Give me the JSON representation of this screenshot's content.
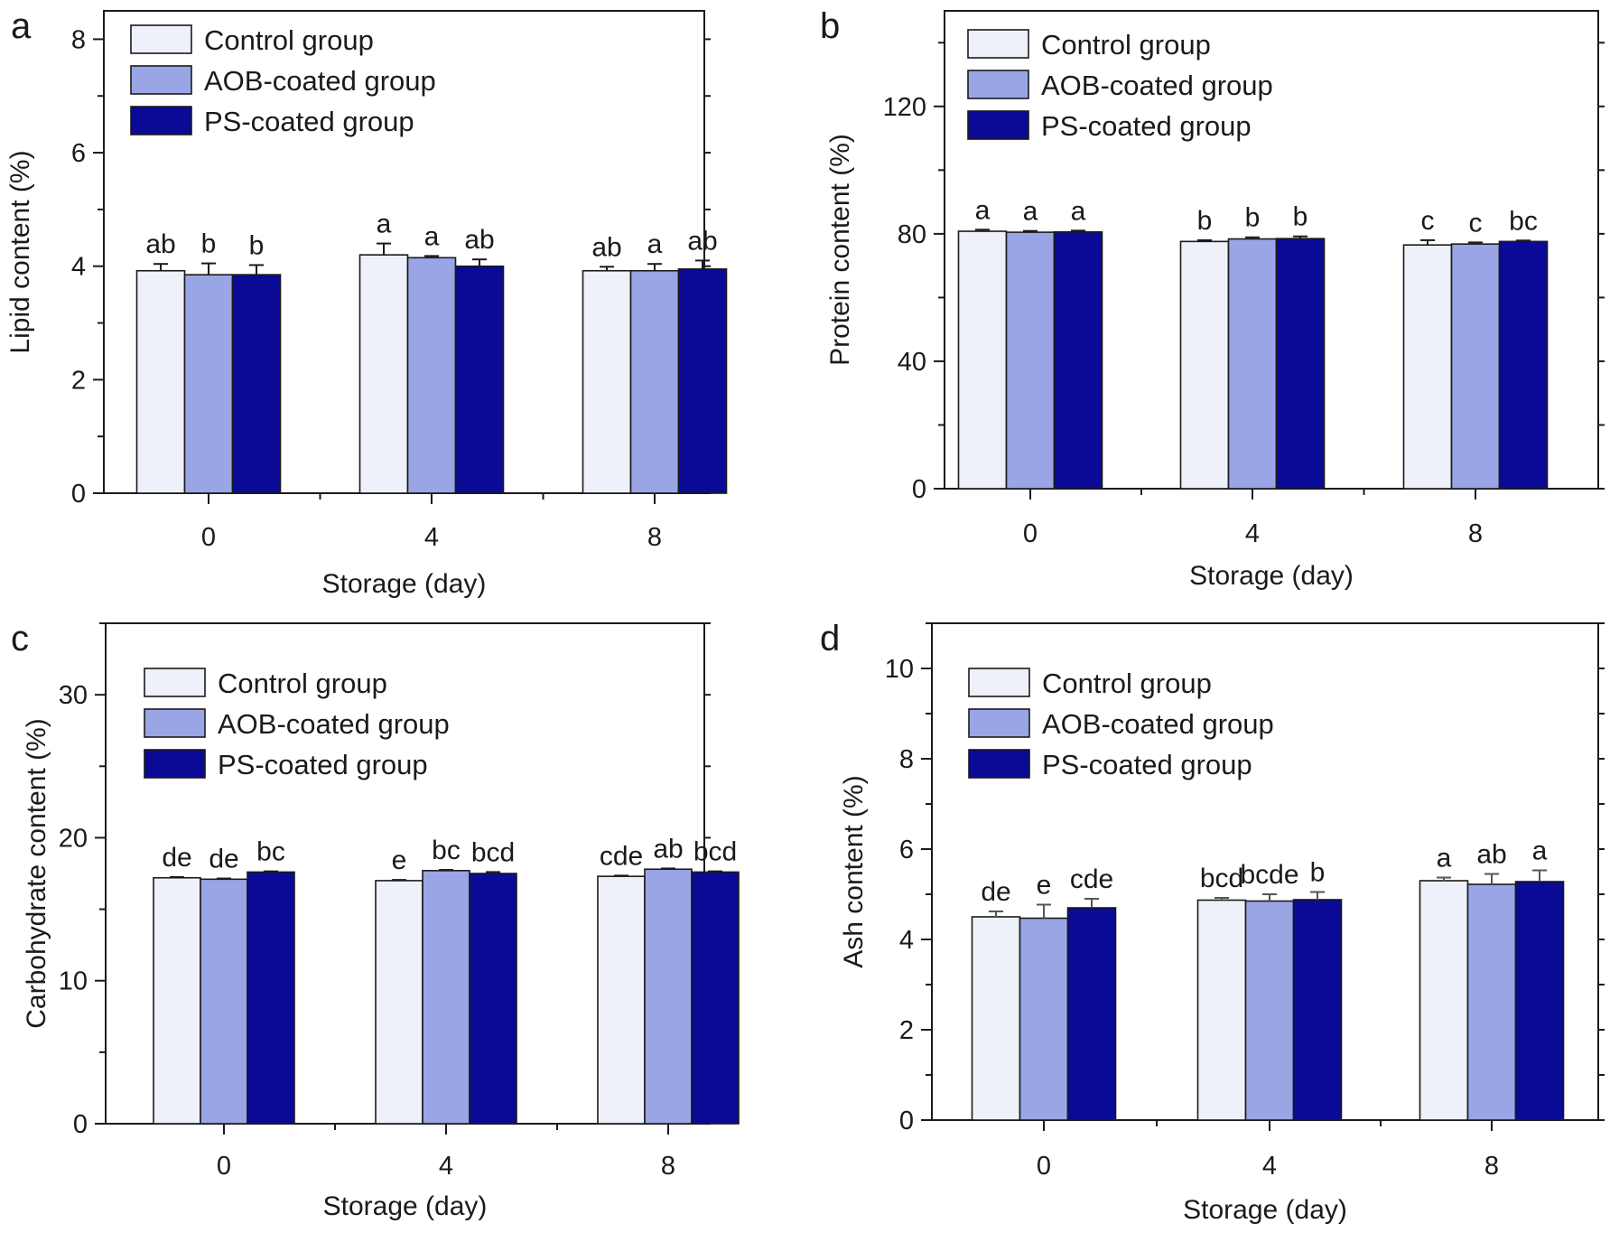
{
  "colors": {
    "control": "#eef0fa",
    "aob": "#9aa5e6",
    "ps": "#0a0a96",
    "axis": "#1a1a1a",
    "error_bar": "#1a1a1a",
    "error_bar_alt": "#555555"
  },
  "chart_data": [
    {
      "panel": "a",
      "type": "bar",
      "categories": [
        "0",
        "4",
        "8"
      ],
      "xlabel": "Storage (day)",
      "ylabel": "Lipid content (%)",
      "ylim": [
        0,
        8.5
      ],
      "yticks": [
        0,
        2,
        4,
        6,
        8
      ],
      "legend_position": "top-left",
      "series": [
        {
          "name": "Control group",
          "color_key": "control",
          "values": [
            3.92,
            4.2,
            3.92
          ],
          "errors": [
            0.12,
            0.2,
            0.07
          ],
          "labels": [
            "ab",
            "a",
            "ab"
          ]
        },
        {
          "name": "AOB-coated group",
          "color_key": "aob",
          "values": [
            3.85,
            4.15,
            3.92
          ],
          "errors": [
            0.2,
            0.03,
            0.12
          ],
          "labels": [
            "b",
            "a",
            "a"
          ]
        },
        {
          "name": "PS-coated group",
          "color_key": "ps",
          "values": [
            3.85,
            4.0,
            3.95
          ],
          "errors": [
            0.17,
            0.12,
            0.15
          ],
          "labels": [
            "b",
            "ab",
            "ab"
          ]
        }
      ]
    },
    {
      "panel": "b",
      "type": "bar",
      "categories": [
        "0",
        "4",
        "8"
      ],
      "xlabel": "Storage (day)",
      "ylabel": "Protein content (%)",
      "ylim": [
        0,
        150
      ],
      "yticks": [
        0,
        40,
        80,
        120
      ],
      "legend_position": "top-left",
      "series": [
        {
          "name": "Control group",
          "color_key": "control",
          "values": [
            80.8,
            77.6,
            76.5
          ],
          "errors": [
            0.5,
            0.4,
            1.5
          ],
          "labels": [
            "a",
            "b",
            "c"
          ]
        },
        {
          "name": "AOB-coated group",
          "color_key": "aob",
          "values": [
            80.5,
            78.4,
            76.8
          ],
          "errors": [
            0.4,
            0.5,
            0.5
          ],
          "labels": [
            "a",
            "b",
            "c"
          ]
        },
        {
          "name": "PS-coated group",
          "color_key": "ps",
          "values": [
            80.6,
            78.5,
            77.6
          ],
          "errors": [
            0.4,
            0.7,
            0.3
          ],
          "labels": [
            "a",
            "b",
            "bc"
          ]
        }
      ]
    },
    {
      "panel": "c",
      "type": "bar",
      "categories": [
        "0",
        "4",
        "8"
      ],
      "xlabel": "Storage (day)",
      "ylabel": "Carbohydrate content (%)",
      "ylim": [
        0,
        35
      ],
      "yticks": [
        0,
        10,
        20,
        30
      ],
      "legend_position": "top-left",
      "series": [
        {
          "name": "Control group",
          "color_key": "control",
          "values": [
            17.2,
            17.0,
            17.3
          ],
          "errors": [
            0.05,
            0.05,
            0.05
          ],
          "labels": [
            "de",
            "e",
            "cde"
          ]
        },
        {
          "name": "AOB-coated group",
          "color_key": "aob",
          "values": [
            17.1,
            17.7,
            17.8
          ],
          "errors": [
            0.05,
            0.05,
            0.05
          ],
          "labels": [
            "de",
            "bc",
            "ab"
          ]
        },
        {
          "name": "PS-coated group",
          "color_key": "ps",
          "values": [
            17.6,
            17.5,
            17.6
          ],
          "errors": [
            0.05,
            0.1,
            0.05
          ],
          "labels": [
            "bc",
            "bcd",
            "bcd"
          ]
        }
      ]
    },
    {
      "panel": "d",
      "type": "bar",
      "categories": [
        "0",
        "4",
        "8"
      ],
      "xlabel": "Storage (day)",
      "ylabel": "Ash content (%)",
      "ylim": [
        0,
        11
      ],
      "yticks": [
        0,
        2,
        4,
        6,
        8,
        10
      ],
      "legend_position": "top-left",
      "series": [
        {
          "name": "Control group",
          "color_key": "control",
          "values": [
            4.5,
            4.87,
            5.3
          ],
          "errors": [
            0.12,
            0.05,
            0.07
          ],
          "labels": [
            "de",
            "bcd",
            "a"
          ]
        },
        {
          "name": "AOB-coated group",
          "color_key": "aob",
          "values": [
            4.47,
            4.85,
            5.22
          ],
          "errors": [
            0.3,
            0.15,
            0.23
          ],
          "labels": [
            "e",
            "bcde",
            "ab"
          ]
        },
        {
          "name": "PS-coated group",
          "color_key": "ps",
          "values": [
            4.7,
            4.88,
            5.28
          ],
          "errors": [
            0.2,
            0.17,
            0.25
          ],
          "labels": [
            "cde",
            "b",
            "a"
          ]
        }
      ]
    }
  ]
}
